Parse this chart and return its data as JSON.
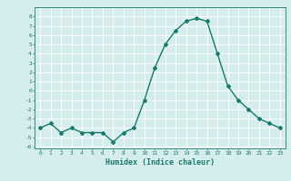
{
  "x": [
    0,
    1,
    2,
    3,
    4,
    5,
    6,
    7,
    8,
    9,
    10,
    11,
    12,
    13,
    14,
    15,
    16,
    17,
    18,
    19,
    20,
    21,
    22,
    23
  ],
  "y": [
    -4,
    -3.5,
    -4.5,
    -4,
    -4.5,
    -4.5,
    -4.5,
    -5.5,
    -4.5,
    -4,
    -1,
    2.5,
    5,
    6.5,
    7.5,
    7.8,
    7.5,
    4,
    0.5,
    -1,
    -2,
    -3,
    -3.5,
    -4
  ],
  "line_color": "#1a7a6e",
  "marker": "D",
  "markersize": 2,
  "linewidth": 1.0,
  "xlabel": "Humidex (Indice chaleur)",
  "xlim": [
    -0.5,
    23.5
  ],
  "ylim": [
    -6.2,
    9
  ],
  "yticks": [
    8,
    7,
    6,
    5,
    4,
    3,
    2,
    1,
    0,
    -1,
    -2,
    -3,
    -4,
    -5,
    -6
  ],
  "xticks": [
    0,
    1,
    2,
    3,
    4,
    5,
    6,
    7,
    8,
    9,
    10,
    11,
    12,
    13,
    14,
    15,
    16,
    17,
    18,
    19,
    20,
    21,
    22,
    23
  ],
  "bg_color": "#d5edec",
  "grid_color": "#ffffff",
  "tick_color": "#1a7a6e",
  "label_color": "#1a7a6e",
  "tick_fontsize": 4.5,
  "xlabel_fontsize": 6.0
}
